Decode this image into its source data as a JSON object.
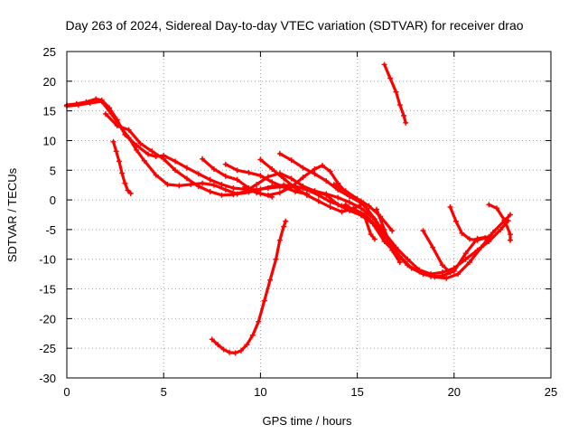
{
  "chart_data": {
    "type": "line",
    "title": "Day 263 of 2024, Sidereal Day-to-day VTEC variation (SDTVAR) for receiver drao",
    "xlabel": "GPS time / hours",
    "ylabel": "SDTVAR / TECUs",
    "xlim": [
      0,
      25
    ],
    "ylim": [
      -30,
      25
    ],
    "xticks": [
      0,
      5,
      10,
      15,
      20,
      25
    ],
    "yticks": [
      -30,
      -25,
      -20,
      -15,
      -10,
      -5,
      0,
      5,
      10,
      15,
      20,
      25
    ],
    "grid": true,
    "series_color": "#ff0000",
    "series": [
      {
        "name": "track-1",
        "points": [
          [
            0,
            16
          ],
          [
            0.5,
            16.2
          ],
          [
            1,
            16.5
          ],
          [
            1.5,
            17
          ],
          [
            1.8,
            16.8
          ],
          [
            2.2,
            15.5
          ],
          [
            2.6,
            13.5
          ],
          [
            3.0,
            11
          ],
          [
            3.6,
            9.2
          ],
          [
            4.2,
            7.7
          ],
          [
            4.6,
            7.3
          ],
          [
            5.0,
            7.5
          ],
          [
            5.6,
            6.5
          ],
          [
            6.2,
            5.4
          ],
          [
            6.8,
            4.4
          ],
          [
            7.4,
            3.4
          ],
          [
            8.0,
            2.6
          ],
          [
            8.6,
            2.0
          ],
          [
            9.2,
            1.8
          ],
          [
            9.8,
            1.7
          ],
          [
            10.4,
            2.0
          ],
          [
            11.0,
            2.2
          ],
          [
            11.6,
            2.2
          ],
          [
            12.2,
            2.0
          ],
          [
            12.8,
            1.5
          ],
          [
            13.4,
            1.0
          ],
          [
            14.0,
            0.4
          ],
          [
            14.6,
            -0.4
          ],
          [
            15.2,
            -1.4
          ],
          [
            15.8,
            -3
          ],
          [
            16.4,
            -5.5
          ],
          [
            17.0,
            -8
          ],
          [
            17.6,
            -10
          ],
          [
            18.2,
            -11.8
          ],
          [
            18.8,
            -12.5
          ],
          [
            19.4,
            -12.2
          ],
          [
            20.0,
            -11.5
          ],
          [
            20.6,
            -10
          ],
          [
            21.2,
            -8.5
          ],
          [
            21.8,
            -7
          ],
          [
            22.4,
            -5
          ],
          [
            22.8,
            -3.5
          ]
        ]
      },
      {
        "name": "track-2",
        "points": [
          [
            0,
            15.8
          ],
          [
            0.6,
            16
          ],
          [
            1.2,
            16.3
          ],
          [
            1.8,
            16.6
          ],
          [
            2.3,
            14.5
          ],
          [
            2.8,
            12.2
          ],
          [
            3.2,
            10.5
          ],
          [
            3.6,
            8.4
          ],
          [
            4.0,
            6.6
          ],
          [
            4.6,
            4.2
          ],
          [
            5.2,
            2.6
          ],
          [
            5.8,
            2.4
          ],
          [
            6.4,
            2.6
          ],
          [
            7.0,
            2.8
          ],
          [
            7.6,
            2.5
          ],
          [
            8.2,
            1.7
          ],
          [
            8.8,
            1.0
          ],
          [
            9.4,
            1.3
          ],
          [
            10.0,
            1.8
          ],
          [
            10.6,
            2.3
          ],
          [
            11.2,
            2.5
          ],
          [
            11.8,
            2.3
          ],
          [
            12.4,
            1.7
          ],
          [
            13.0,
            0.8
          ],
          [
            13.6,
            -0.3
          ],
          [
            14.2,
            -1.0
          ],
          [
            14.8,
            -1.5
          ],
          [
            15.4,
            -2.5
          ],
          [
            16.0,
            -4.5
          ],
          [
            16.6,
            -7
          ],
          [
            17.2,
            -9.5
          ],
          [
            17.8,
            -11.5
          ],
          [
            18.4,
            -12.5
          ],
          [
            19.0,
            -13
          ],
          [
            19.6,
            -13.2
          ],
          [
            20.2,
            -12.5
          ],
          [
            20.8,
            -10.5
          ],
          [
            21.4,
            -8
          ],
          [
            22.0,
            -5.5
          ],
          [
            22.6,
            -3.5
          ],
          [
            22.9,
            -2.5
          ]
        ]
      },
      {
        "name": "track-3",
        "points": [
          [
            2.0,
            14.5
          ],
          [
            2.6,
            12.5
          ],
          [
            3.2,
            11.8
          ],
          [
            3.8,
            9.5
          ],
          [
            4.4,
            8.2
          ],
          [
            5.0,
            6.9
          ],
          [
            5.6,
            5.0
          ],
          [
            6.2,
            3.6
          ],
          [
            6.8,
            2.3
          ],
          [
            7.4,
            1.4
          ],
          [
            8.0,
            0.8
          ],
          [
            8.6,
            0.9
          ],
          [
            9.2,
            1.4
          ],
          [
            9.8,
            2.6
          ],
          [
            10.4,
            3.9
          ],
          [
            11.0,
            4.5
          ],
          [
            11.6,
            3.6
          ],
          [
            12.2,
            2.3
          ],
          [
            12.8,
            1.5
          ],
          [
            13.4,
            0.8
          ],
          [
            14.0,
            -0.8
          ],
          [
            14.6,
            -1.8
          ],
          [
            15.2,
            -2.6
          ],
          [
            15.8,
            -4
          ],
          [
            16.4,
            -7
          ],
          [
            17.0,
            -9
          ],
          [
            17.6,
            -11
          ],
          [
            18.2,
            -12.1
          ],
          [
            18.8,
            -12.9
          ],
          [
            19.4,
            -12.8
          ],
          [
            20.0,
            -12
          ],
          [
            20.6,
            -9
          ],
          [
            21.2,
            -6.5
          ],
          [
            21.8,
            -6.2
          ]
        ]
      },
      {
        "name": "track-4",
        "points": [
          [
            7.0,
            6.9
          ],
          [
            7.6,
            5.2
          ],
          [
            8.2,
            4.0
          ],
          [
            8.8,
            3.4
          ],
          [
            9.4,
            2.0
          ],
          [
            10.0,
            1.1
          ],
          [
            10.6,
            0.5
          ]
        ]
      },
      {
        "name": "track-5",
        "points": [
          [
            8.2,
            6.0
          ],
          [
            8.8,
            5.0
          ],
          [
            9.4,
            4.6
          ],
          [
            10.0,
            4.1
          ],
          [
            10.6,
            3.0
          ],
          [
            11.2,
            2.2
          ],
          [
            11.8,
            1.4
          ],
          [
            12.4,
            1.0
          ]
        ]
      },
      {
        "name": "track-6",
        "points": [
          [
            9.2,
            2.2
          ],
          [
            9.8,
            1.2
          ],
          [
            10.4,
            0.8
          ],
          [
            11.0,
            1.2
          ],
          [
            11.6,
            2.2
          ],
          [
            12.2,
            3.8
          ],
          [
            12.8,
            5.2
          ],
          [
            13.2,
            5.8
          ],
          [
            13.6,
            4.8
          ],
          [
            14.0,
            2.8
          ],
          [
            14.6,
            0.6
          ],
          [
            15.2,
            -0.5
          ]
        ]
      },
      {
        "name": "track-7",
        "points": [
          [
            10.0,
            6.8
          ],
          [
            10.6,
            5.2
          ],
          [
            11.2,
            3.6
          ],
          [
            11.8,
            2.0
          ],
          [
            12.4,
            0.8
          ],
          [
            13.0,
            -0.2
          ],
          [
            13.6,
            -1.2
          ],
          [
            14.2,
            -2.0
          ],
          [
            14.8,
            -1.5
          ],
          [
            15.3,
            -0.6
          ]
        ]
      },
      {
        "name": "track-8",
        "points": [
          [
            11.0,
            7.8
          ],
          [
            11.6,
            6.7
          ],
          [
            12.2,
            5.4
          ],
          [
            12.8,
            4.4
          ],
          [
            13.4,
            3.2
          ],
          [
            14.0,
            1.7
          ],
          [
            14.6,
            0.6
          ],
          [
            15.2,
            -0.2
          ],
          [
            15.6,
            -1.0
          ],
          [
            16.2,
            -2.8
          ],
          [
            16.8,
            -5.2
          ]
        ]
      },
      {
        "name": "track-9",
        "points": [
          [
            13.8,
            2.6
          ],
          [
            14.4,
            1.5
          ],
          [
            15.0,
            0.2
          ],
          [
            15.5,
            -1.5
          ],
          [
            15.9,
            -3.2
          ],
          [
            16.2,
            -4.6
          ]
        ]
      },
      {
        "name": "track-10",
        "points": [
          [
            14.4,
            -0.8
          ],
          [
            14.9,
            -2.0
          ],
          [
            15.4,
            -3.0
          ],
          [
            15.7,
            -5.8
          ],
          [
            15.9,
            -6.6
          ]
        ]
      },
      {
        "name": "track-11",
        "points": [
          [
            16.0,
            -1.6
          ],
          [
            16.4,
            -5.0
          ],
          [
            16.8,
            -8.5
          ],
          [
            17.2,
            -10.5
          ]
        ]
      },
      {
        "name": "track-12",
        "points": [
          [
            18.4,
            -5.2
          ],
          [
            18.9,
            -8.0
          ],
          [
            19.4,
            -11.0
          ],
          [
            19.8,
            -12.2
          ]
        ]
      },
      {
        "name": "track-13",
        "points": [
          [
            19.8,
            -1.2
          ],
          [
            20.1,
            -3.6
          ],
          [
            20.4,
            -5.6
          ],
          [
            20.8,
            -6.6
          ],
          [
            21.2,
            -6.8
          ],
          [
            21.6,
            -6.4
          ]
        ]
      },
      {
        "name": "track-14",
        "points": [
          [
            21.8,
            -0.8
          ],
          [
            22.2,
            -1.4
          ],
          [
            22.6,
            -3.4
          ],
          [
            22.9,
            -5.8
          ],
          [
            22.9,
            -6.8
          ]
        ]
      },
      {
        "name": "track-15",
        "points": [
          [
            2.4,
            9.8
          ],
          [
            2.55,
            8.2
          ],
          [
            2.7,
            6.5
          ],
          [
            2.85,
            4.5
          ],
          [
            3.0,
            2.8
          ],
          [
            3.15,
            1.6
          ],
          [
            3.3,
            1.1
          ]
        ]
      },
      {
        "name": "track-16",
        "points": [
          [
            16.4,
            22.8
          ],
          [
            16.7,
            20.5
          ],
          [
            17.0,
            18.2
          ],
          [
            17.2,
            16.0
          ],
          [
            17.4,
            14.2
          ],
          [
            17.5,
            13.0
          ]
        ]
      },
      {
        "name": "track-17",
        "points": [
          [
            7.5,
            -23.5
          ],
          [
            7.8,
            -24.4
          ],
          [
            8.1,
            -25.2
          ],
          [
            8.4,
            -25.7
          ],
          [
            8.7,
            -25.8
          ],
          [
            9.0,
            -25.4
          ],
          [
            9.3,
            -24.4
          ],
          [
            9.6,
            -22.8
          ],
          [
            9.9,
            -20.5
          ],
          [
            10.2,
            -17
          ],
          [
            10.5,
            -13.5
          ],
          [
            10.8,
            -10
          ],
          [
            11.0,
            -6.8
          ],
          [
            11.2,
            -4.5
          ],
          [
            11.3,
            -3.6
          ]
        ]
      }
    ]
  }
}
